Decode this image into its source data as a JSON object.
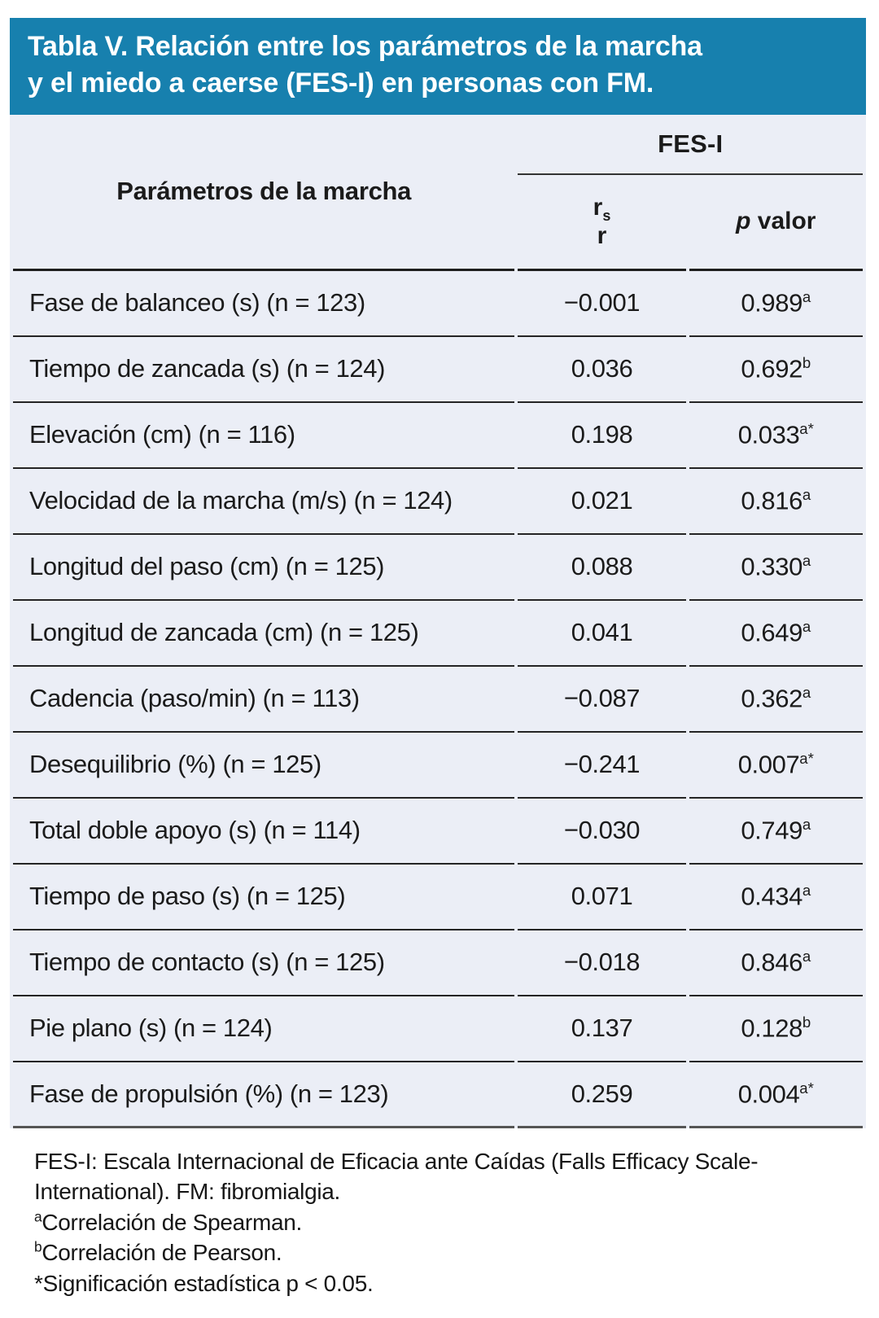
{
  "title": {
    "line1": "Tabla V. Relación entre los parámetros de la marcha",
    "line2": "y el miedo a caerse (FES-I) en personas con FM."
  },
  "table": {
    "param_header": "Parámetros de la marcha",
    "group_header": "FES-I",
    "subcol1_r": "r",
    "subcol1_sub": "s",
    "subcol1_line2": "r",
    "subcol2_italic": "p",
    "subcol2_rest": " valor",
    "rows": [
      {
        "param": "Fase de balanceo (s) (n = 123)",
        "r": "−0.001",
        "p": "0.989",
        "p_sup": "a"
      },
      {
        "param": "Tiempo de zancada (s) (n = 124)",
        "r": "0.036",
        "p": "0.692",
        "p_sup": "b"
      },
      {
        "param": "Elevación (cm) (n = 116)",
        "r": "0.198",
        "p": "0.033",
        "p_sup": "a*"
      },
      {
        "param": "Velocidad de la marcha (m/s) (n = 124)",
        "r": "0.021",
        "p": "0.816",
        "p_sup": "a"
      },
      {
        "param": "Longitud del paso (cm) (n = 125)",
        "r": "0.088",
        "p": "0.330",
        "p_sup": "a"
      },
      {
        "param": "Longitud de zancada (cm) (n = 125)",
        "r": "0.041",
        "p": "0.649",
        "p_sup": "a"
      },
      {
        "param": "Cadencia (paso/min) (n = 113)",
        "r": "−0.087",
        "p": "0.362",
        "p_sup": "a"
      },
      {
        "param": "Desequilibrio (%) (n = 125)",
        "r": "−0.241",
        "p": "0.007",
        "p_sup": "a*"
      },
      {
        "param": "Total doble apoyo (s) (n = 114)",
        "r": "−0.030",
        "p": "0.749",
        "p_sup": "a"
      },
      {
        "param": "Tiempo de paso (s) (n = 125)",
        "r": "0.071",
        "p": "0.434",
        "p_sup": "a"
      },
      {
        "param": "Tiempo de contacto (s) (n = 125)",
        "r": "−0.018",
        "p": "0.846",
        "p_sup": "a"
      },
      {
        "param": "Pie plano (s) (n = 124)",
        "r": "0.137",
        "p": "0.128",
        "p_sup": "b"
      },
      {
        "param": "Fase de propulsión (%) (n = 123)",
        "r": "0.259",
        "p": "0.004",
        "p_sup": "a*"
      }
    ]
  },
  "footnotes": {
    "line1": "FES-I: Escala Internacional de Eficacia ante Caídas (Falls Efficacy Scale-",
    "line2": "International). FM: fibromialgia.",
    "note_a_sup": "a",
    "note_a_text": "Correlación de Spearman.",
    "note_b_sup": "b",
    "note_b_text": "Correlación de Pearson.",
    "note_star": "*Significación estadística p < 0.05."
  },
  "colors": {
    "title_bar_bg": "#1780AE",
    "title_text": "#ffffff",
    "table_bg": "#EBEEF6",
    "rule_color": "#242424"
  }
}
